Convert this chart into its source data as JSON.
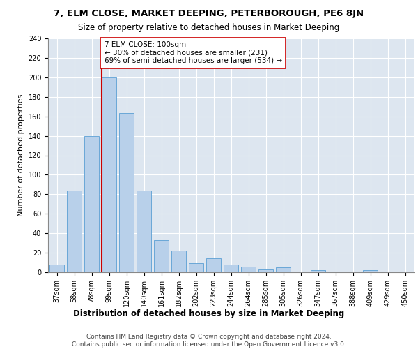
{
  "title1": "7, ELM CLOSE, MARKET DEEPING, PETERBOROUGH, PE6 8JN",
  "title2": "Size of property relative to detached houses in Market Deeping",
  "xlabel": "Distribution of detached houses by size in Market Deeping",
  "ylabel": "Number of detached properties",
  "categories": [
    "37sqm",
    "58sqm",
    "78sqm",
    "99sqm",
    "120sqm",
    "140sqm",
    "161sqm",
    "182sqm",
    "202sqm",
    "223sqm",
    "244sqm",
    "264sqm",
    "285sqm",
    "305sqm",
    "326sqm",
    "347sqm",
    "367sqm",
    "388sqm",
    "409sqm",
    "429sqm",
    "450sqm"
  ],
  "values": [
    8,
    84,
    140,
    200,
    163,
    84,
    33,
    22,
    9,
    14,
    8,
    6,
    3,
    5,
    0,
    2,
    0,
    0,
    2,
    0,
    0
  ],
  "bar_color": "#b8d0ea",
  "bar_edge_color": "#5a9fd4",
  "vline_color": "#cc0000",
  "annotation_text": "7 ELM CLOSE: 100sqm\n← 30% of detached houses are smaller (231)\n69% of semi-detached houses are larger (534) →",
  "annotation_box_color": "#ffffff",
  "annotation_box_edge": "#cc0000",
  "ylim": [
    0,
    240
  ],
  "yticks": [
    0,
    20,
    40,
    60,
    80,
    100,
    120,
    140,
    160,
    180,
    200,
    220,
    240
  ],
  "bg_color": "#dde6f0",
  "footer_text": "Contains HM Land Registry data © Crown copyright and database right 2024.\nContains public sector information licensed under the Open Government Licence v3.0.",
  "title1_fontsize": 9.5,
  "title2_fontsize": 8.5,
  "xlabel_fontsize": 8.5,
  "ylabel_fontsize": 8,
  "tick_fontsize": 7,
  "annotation_fontsize": 7.5,
  "footer_fontsize": 6.5
}
